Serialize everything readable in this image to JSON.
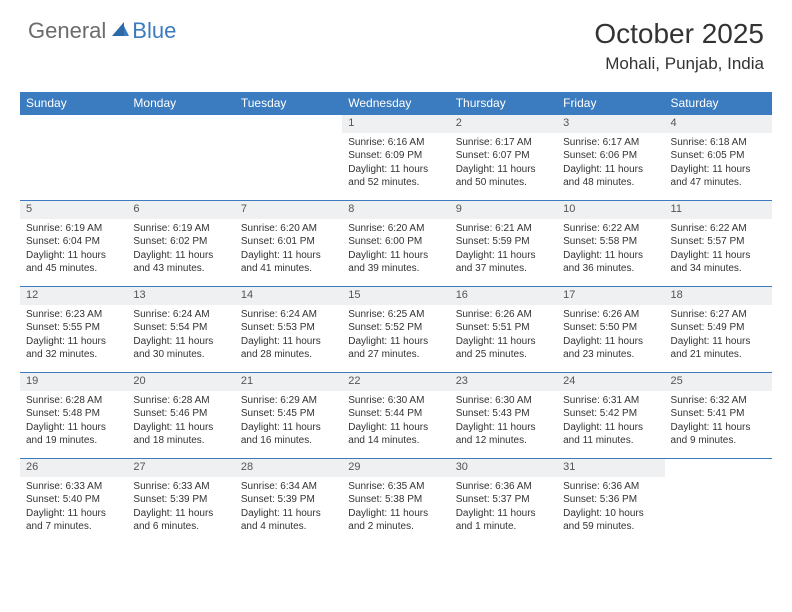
{
  "logo": {
    "part1": "General",
    "part2": "Blue"
  },
  "title": "October 2025",
  "location": "Mohali, Punjab, India",
  "colors": {
    "header_bg": "#3b7bbf",
    "header_text": "#ffffff",
    "daynum_bg": "#eef0f2",
    "row_border": "#3b7bbf",
    "body_text": "#333333",
    "logo_gray": "#6b6b6b",
    "logo_blue": "#3b7bbf"
  },
  "day_headers": [
    "Sunday",
    "Monday",
    "Tuesday",
    "Wednesday",
    "Thursday",
    "Friday",
    "Saturday"
  ],
  "weeks": [
    [
      null,
      null,
      null,
      {
        "n": "1",
        "sr": "6:16 AM",
        "ss": "6:09 PM",
        "d": "11 hours and 52 minutes."
      },
      {
        "n": "2",
        "sr": "6:17 AM",
        "ss": "6:07 PM",
        "d": "11 hours and 50 minutes."
      },
      {
        "n": "3",
        "sr": "6:17 AM",
        "ss": "6:06 PM",
        "d": "11 hours and 48 minutes."
      },
      {
        "n": "4",
        "sr": "6:18 AM",
        "ss": "6:05 PM",
        "d": "11 hours and 47 minutes."
      }
    ],
    [
      {
        "n": "5",
        "sr": "6:19 AM",
        "ss": "6:04 PM",
        "d": "11 hours and 45 minutes."
      },
      {
        "n": "6",
        "sr": "6:19 AM",
        "ss": "6:02 PM",
        "d": "11 hours and 43 minutes."
      },
      {
        "n": "7",
        "sr": "6:20 AM",
        "ss": "6:01 PM",
        "d": "11 hours and 41 minutes."
      },
      {
        "n": "8",
        "sr": "6:20 AM",
        "ss": "6:00 PM",
        "d": "11 hours and 39 minutes."
      },
      {
        "n": "9",
        "sr": "6:21 AM",
        "ss": "5:59 PM",
        "d": "11 hours and 37 minutes."
      },
      {
        "n": "10",
        "sr": "6:22 AM",
        "ss": "5:58 PM",
        "d": "11 hours and 36 minutes."
      },
      {
        "n": "11",
        "sr": "6:22 AM",
        "ss": "5:57 PM",
        "d": "11 hours and 34 minutes."
      }
    ],
    [
      {
        "n": "12",
        "sr": "6:23 AM",
        "ss": "5:55 PM",
        "d": "11 hours and 32 minutes."
      },
      {
        "n": "13",
        "sr": "6:24 AM",
        "ss": "5:54 PM",
        "d": "11 hours and 30 minutes."
      },
      {
        "n": "14",
        "sr": "6:24 AM",
        "ss": "5:53 PM",
        "d": "11 hours and 28 minutes."
      },
      {
        "n": "15",
        "sr": "6:25 AM",
        "ss": "5:52 PM",
        "d": "11 hours and 27 minutes."
      },
      {
        "n": "16",
        "sr": "6:26 AM",
        "ss": "5:51 PM",
        "d": "11 hours and 25 minutes."
      },
      {
        "n": "17",
        "sr": "6:26 AM",
        "ss": "5:50 PM",
        "d": "11 hours and 23 minutes."
      },
      {
        "n": "18",
        "sr": "6:27 AM",
        "ss": "5:49 PM",
        "d": "11 hours and 21 minutes."
      }
    ],
    [
      {
        "n": "19",
        "sr": "6:28 AM",
        "ss": "5:48 PM",
        "d": "11 hours and 19 minutes."
      },
      {
        "n": "20",
        "sr": "6:28 AM",
        "ss": "5:46 PM",
        "d": "11 hours and 18 minutes."
      },
      {
        "n": "21",
        "sr": "6:29 AM",
        "ss": "5:45 PM",
        "d": "11 hours and 16 minutes."
      },
      {
        "n": "22",
        "sr": "6:30 AM",
        "ss": "5:44 PM",
        "d": "11 hours and 14 minutes."
      },
      {
        "n": "23",
        "sr": "6:30 AM",
        "ss": "5:43 PM",
        "d": "11 hours and 12 minutes."
      },
      {
        "n": "24",
        "sr": "6:31 AM",
        "ss": "5:42 PM",
        "d": "11 hours and 11 minutes."
      },
      {
        "n": "25",
        "sr": "6:32 AM",
        "ss": "5:41 PM",
        "d": "11 hours and 9 minutes."
      }
    ],
    [
      {
        "n": "26",
        "sr": "6:33 AM",
        "ss": "5:40 PM",
        "d": "11 hours and 7 minutes."
      },
      {
        "n": "27",
        "sr": "6:33 AM",
        "ss": "5:39 PM",
        "d": "11 hours and 6 minutes."
      },
      {
        "n": "28",
        "sr": "6:34 AM",
        "ss": "5:39 PM",
        "d": "11 hours and 4 minutes."
      },
      {
        "n": "29",
        "sr": "6:35 AM",
        "ss": "5:38 PM",
        "d": "11 hours and 2 minutes."
      },
      {
        "n": "30",
        "sr": "6:36 AM",
        "ss": "5:37 PM",
        "d": "11 hours and 1 minute."
      },
      {
        "n": "31",
        "sr": "6:36 AM",
        "ss": "5:36 PM",
        "d": "10 hours and 59 minutes."
      },
      null
    ]
  ],
  "labels": {
    "sunrise": "Sunrise:",
    "sunset": "Sunset:",
    "daylight": "Daylight:"
  }
}
